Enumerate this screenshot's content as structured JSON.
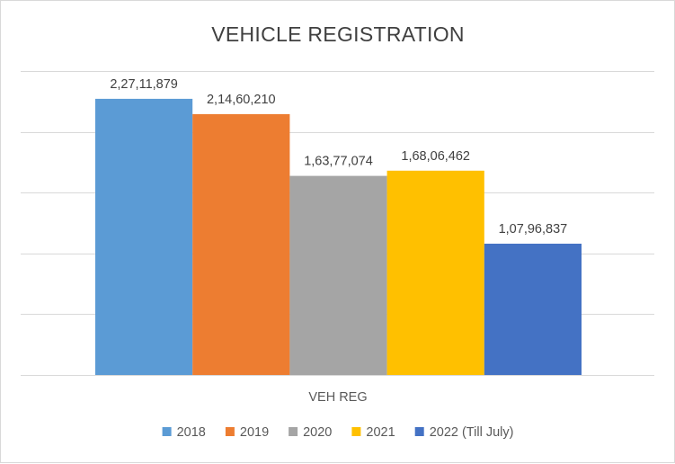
{
  "chart_data": {
    "type": "bar",
    "title": "VEHICLE REGISTRATION",
    "categories": [
      "VEH REG"
    ],
    "series": [
      {
        "name": "2018",
        "values": [
          22711879
        ],
        "label": "2,27,11,879",
        "color": "#5b9bd5"
      },
      {
        "name": "2019",
        "values": [
          21460210
        ],
        "label": "2,14,60,210",
        "color": "#ed7d31"
      },
      {
        "name": "2020",
        "values": [
          16377074
        ],
        "label": "1,63,77,074",
        "color": "#a5a5a5"
      },
      {
        "name": "2021",
        "values": [
          16806462
        ],
        "label": "1,68,06,462",
        "color": "#ffc000"
      },
      {
        "name": "2022 (Till July)",
        "values": [
          10796837
        ],
        "label": "1,07,96,837",
        "color": "#4472c4"
      }
    ],
    "xlabel": "",
    "ylabel": "",
    "ylim": [
      0,
      25000000
    ],
    "ytick_step": 5000000,
    "grid": true,
    "legend": "bottom"
  }
}
